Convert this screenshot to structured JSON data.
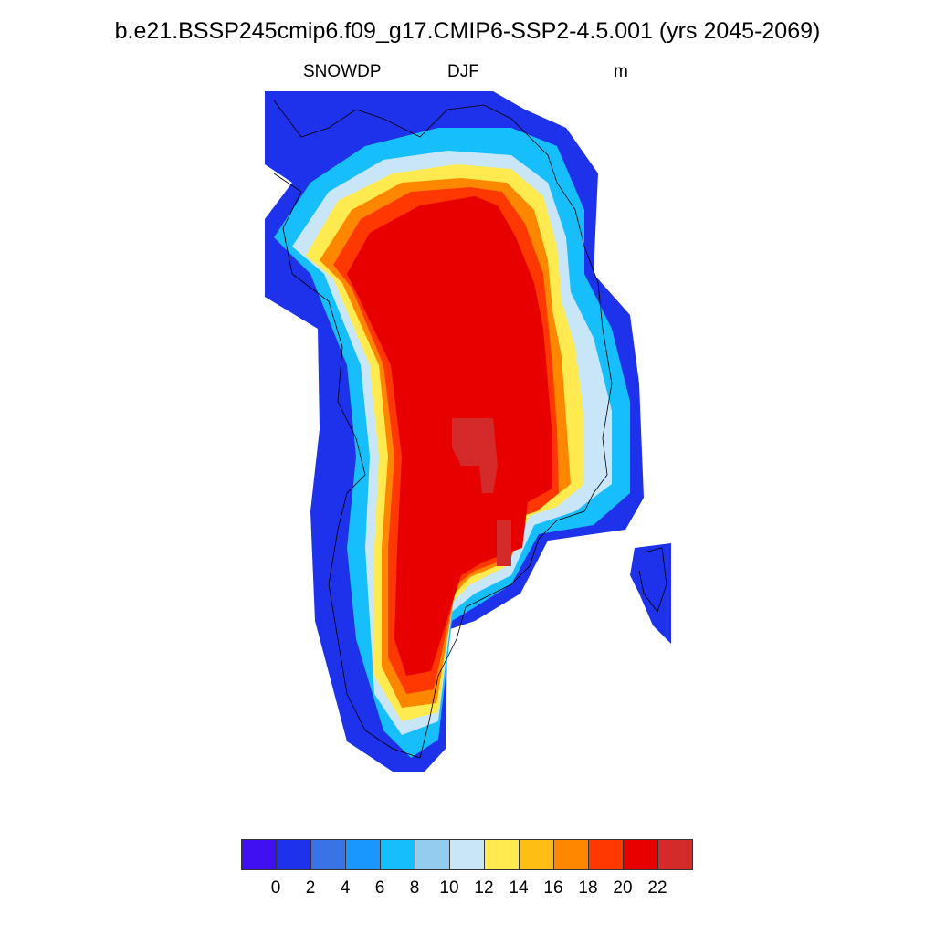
{
  "title": "b.e21.BSSP245cmip6.f09_g17.CMIP6-SSP2-4.5.001 (yrs 2045-2069)",
  "variable": "SNOWDP",
  "season": "DJF",
  "units": "m",
  "colorbar": {
    "colors": [
      "#4010F0",
      "#1E32EB",
      "#3A73E6",
      "#1A96FF",
      "#16BEFC",
      "#92CDF0",
      "#C8E6F8",
      "#FFEA50",
      "#FFBE14",
      "#FF8700",
      "#FF3700",
      "#E80000",
      "#D42A2A"
    ],
    "labels": [
      "0",
      "2",
      "4",
      "6",
      "8",
      "10",
      "12",
      "14",
      "16",
      "18",
      "20",
      "22"
    ]
  }
}
